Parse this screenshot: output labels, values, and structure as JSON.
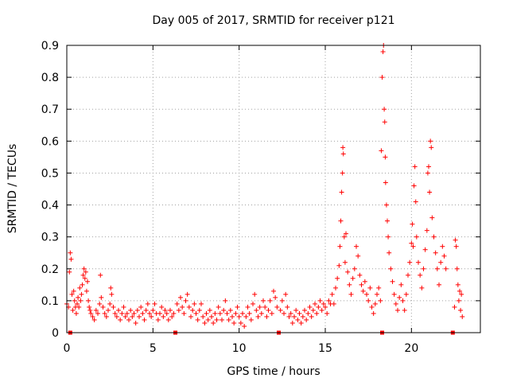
{
  "chart_data": {
    "type": "scatter",
    "title": "Day 005 of 2017, SRMTID for receiver p121",
    "xlabel": "GPS time / hours",
    "ylabel": "SRMTID / TECUs",
    "xlim": [
      0,
      24
    ],
    "ylim": [
      0,
      0.9
    ],
    "xticks": [
      0,
      5,
      10,
      15,
      20
    ],
    "xtick_labels": [
      "0",
      "5",
      "10",
      "15",
      "20"
    ],
    "yticks": [
      0,
      0.1,
      0.2,
      0.3,
      0.4,
      0.5,
      0.6,
      0.7,
      0.8,
      0.9
    ],
    "ytick_labels": [
      "0",
      "0.1",
      "0.2",
      "0.3",
      "0.4",
      "0.5",
      "0.6",
      "0.7",
      "0.8",
      "0.9"
    ],
    "grid": true,
    "marker": "+",
    "color": "#ff0000",
    "gap_markers_x": [
      0.2,
      6.3,
      12.3,
      18.3,
      22.4
    ],
    "series": [
      {
        "name": "SRMTID",
        "points": [
          [
            0.0,
            0.09
          ],
          [
            0.1,
            0.08
          ],
          [
            0.15,
            0.19
          ],
          [
            0.2,
            0.25
          ],
          [
            0.25,
            0.23
          ],
          [
            0.3,
            0.12
          ],
          [
            0.35,
            0.07
          ],
          [
            0.4,
            0.13
          ],
          [
            0.45,
            0.1
          ],
          [
            0.5,
            0.08
          ],
          [
            0.55,
            0.06
          ],
          [
            0.6,
            0.09
          ],
          [
            0.65,
            0.11
          ],
          [
            0.7,
            0.08
          ],
          [
            0.75,
            0.14
          ],
          [
            0.8,
            0.1
          ],
          [
            0.85,
            0.12
          ],
          [
            0.9,
            0.15
          ],
          [
            0.95,
            0.18
          ],
          [
            1.0,
            0.2
          ],
          [
            1.05,
            0.17
          ],
          [
            1.1,
            0.19
          ],
          [
            1.15,
            0.13
          ],
          [
            1.2,
            0.16
          ],
          [
            1.25,
            0.1
          ],
          [
            1.3,
            0.08
          ],
          [
            1.35,
            0.07
          ],
          [
            1.4,
            0.06
          ],
          [
            1.5,
            0.05
          ],
          [
            1.6,
            0.04
          ],
          [
            1.7,
            0.07
          ],
          [
            1.8,
            0.06
          ],
          [
            1.9,
            0.09
          ],
          [
            1.95,
            0.18
          ],
          [
            2.0,
            0.11
          ],
          [
            2.1,
            0.08
          ],
          [
            2.2,
            0.06
          ],
          [
            2.3,
            0.05
          ],
          [
            2.4,
            0.07
          ],
          [
            2.5,
            0.09
          ],
          [
            2.55,
            0.14
          ],
          [
            2.6,
            0.12
          ],
          [
            2.7,
            0.08
          ],
          [
            2.8,
            0.06
          ],
          [
            2.9,
            0.05
          ],
          [
            3.0,
            0.07
          ],
          [
            3.1,
            0.04
          ],
          [
            3.2,
            0.06
          ],
          [
            3.3,
            0.08
          ],
          [
            3.4,
            0.05
          ],
          [
            3.5,
            0.06
          ],
          [
            3.6,
            0.04
          ],
          [
            3.7,
            0.07
          ],
          [
            3.8,
            0.05
          ],
          [
            3.9,
            0.06
          ],
          [
            4.0,
            0.03
          ],
          [
            4.1,
            0.07
          ],
          [
            4.2,
            0.05
          ],
          [
            4.3,
            0.08
          ],
          [
            4.4,
            0.06
          ],
          [
            4.5,
            0.04
          ],
          [
            4.6,
            0.07
          ],
          [
            4.7,
            0.09
          ],
          [
            4.8,
            0.06
          ],
          [
            4.9,
            0.05
          ],
          [
            5.0,
            0.07
          ],
          [
            5.1,
            0.09
          ],
          [
            5.2,
            0.06
          ],
          [
            5.3,
            0.04
          ],
          [
            5.4,
            0.06
          ],
          [
            5.5,
            0.08
          ],
          [
            5.6,
            0.05
          ],
          [
            5.7,
            0.07
          ],
          [
            5.8,
            0.06
          ],
          [
            5.9,
            0.04
          ],
          [
            6.0,
            0.07
          ],
          [
            6.1,
            0.05
          ],
          [
            6.2,
            0.06
          ],
          [
            6.4,
            0.09
          ],
          [
            6.5,
            0.07
          ],
          [
            6.6,
            0.11
          ],
          [
            6.7,
            0.08
          ],
          [
            6.8,
            0.06
          ],
          [
            6.9,
            0.1
          ],
          [
            7.0,
            0.12
          ],
          [
            7.1,
            0.08
          ],
          [
            7.2,
            0.05
          ],
          [
            7.3,
            0.07
          ],
          [
            7.4,
            0.09
          ],
          [
            7.5,
            0.06
          ],
          [
            7.6,
            0.04
          ],
          [
            7.7,
            0.07
          ],
          [
            7.8,
            0.09
          ],
          [
            7.9,
            0.05
          ],
          [
            8.0,
            0.03
          ],
          [
            8.1,
            0.06
          ],
          [
            8.2,
            0.04
          ],
          [
            8.3,
            0.07
          ],
          [
            8.4,
            0.05
          ],
          [
            8.5,
            0.03
          ],
          [
            8.6,
            0.06
          ],
          [
            8.7,
            0.04
          ],
          [
            8.8,
            0.08
          ],
          [
            8.9,
            0.06
          ],
          [
            9.0,
            0.04
          ],
          [
            9.1,
            0.07
          ],
          [
            9.2,
            0.1
          ],
          [
            9.3,
            0.06
          ],
          [
            9.4,
            0.04
          ],
          [
            9.5,
            0.07
          ],
          [
            9.6,
            0.05
          ],
          [
            9.7,
            0.03
          ],
          [
            9.8,
            0.06
          ],
          [
            9.9,
            0.08
          ],
          [
            10.0,
            0.05
          ],
          [
            10.1,
            0.03
          ],
          [
            10.2,
            0.06
          ],
          [
            10.3,
            0.02
          ],
          [
            10.4,
            0.05
          ],
          [
            10.5,
            0.08
          ],
          [
            10.6,
            0.06
          ],
          [
            10.7,
            0.04
          ],
          [
            10.8,
            0.09
          ],
          [
            10.9,
            0.12
          ],
          [
            11.0,
            0.07
          ],
          [
            11.1,
            0.05
          ],
          [
            11.2,
            0.08
          ],
          [
            11.3,
            0.06
          ],
          [
            11.4,
            0.1
          ],
          [
            11.5,
            0.08
          ],
          [
            11.6,
            0.05
          ],
          [
            11.7,
            0.07
          ],
          [
            11.8,
            0.1
          ],
          [
            11.9,
            0.06
          ],
          [
            12.0,
            0.13
          ],
          [
            12.1,
            0.11
          ],
          [
            12.2,
            0.08
          ],
          [
            12.4,
            0.07
          ],
          [
            12.5,
            0.1
          ],
          [
            12.6,
            0.06
          ],
          [
            12.7,
            0.12
          ],
          [
            12.8,
            0.08
          ],
          [
            12.9,
            0.05
          ],
          [
            13.0,
            0.06
          ],
          [
            13.1,
            0.03
          ],
          [
            13.2,
            0.05
          ],
          [
            13.3,
            0.07
          ],
          [
            13.4,
            0.04
          ],
          [
            13.5,
            0.06
          ],
          [
            13.6,
            0.03
          ],
          [
            13.7,
            0.05
          ],
          [
            13.8,
            0.07
          ],
          [
            13.9,
            0.04
          ],
          [
            14.0,
            0.06
          ],
          [
            14.1,
            0.08
          ],
          [
            14.2,
            0.05
          ],
          [
            14.3,
            0.07
          ],
          [
            14.4,
            0.09
          ],
          [
            14.5,
            0.06
          ],
          [
            14.6,
            0.08
          ],
          [
            14.7,
            0.1
          ],
          [
            14.8,
            0.07
          ],
          [
            14.9,
            0.09
          ],
          [
            15.0,
            0.08
          ],
          [
            15.1,
            0.06
          ],
          [
            15.2,
            0.1
          ],
          [
            15.3,
            0.09
          ],
          [
            15.4,
            0.12
          ],
          [
            15.5,
            0.09
          ],
          [
            15.6,
            0.14
          ],
          [
            15.7,
            0.17
          ],
          [
            15.8,
            0.21
          ],
          [
            15.85,
            0.27
          ],
          [
            15.9,
            0.35
          ],
          [
            15.95,
            0.44
          ],
          [
            16.0,
            0.5
          ],
          [
            16.02,
            0.58
          ],
          [
            16.05,
            0.56
          ],
          [
            16.1,
            0.3
          ],
          [
            16.15,
            0.22
          ],
          [
            16.2,
            0.31
          ],
          [
            16.3,
            0.19
          ],
          [
            16.4,
            0.15
          ],
          [
            16.5,
            0.12
          ],
          [
            16.6,
            0.17
          ],
          [
            16.7,
            0.2
          ],
          [
            16.8,
            0.27
          ],
          [
            16.9,
            0.24
          ],
          [
            17.0,
            0.18
          ],
          [
            17.1,
            0.15
          ],
          [
            17.2,
            0.13
          ],
          [
            17.3,
            0.16
          ],
          [
            17.4,
            0.12
          ],
          [
            17.5,
            0.1
          ],
          [
            17.6,
            0.14
          ],
          [
            17.7,
            0.08
          ],
          [
            17.8,
            0.06
          ],
          [
            17.9,
            0.09
          ],
          [
            18.0,
            0.12
          ],
          [
            18.1,
            0.14
          ],
          [
            18.2,
            0.1
          ],
          [
            18.25,
            0.57
          ],
          [
            18.3,
            0.8
          ],
          [
            18.35,
            0.88
          ],
          [
            18.38,
            0.9
          ],
          [
            18.42,
            0.7
          ],
          [
            18.45,
            0.66
          ],
          [
            18.48,
            0.55
          ],
          [
            18.5,
            0.47
          ],
          [
            18.55,
            0.4
          ],
          [
            18.6,
            0.35
          ],
          [
            18.65,
            0.3
          ],
          [
            18.7,
            0.25
          ],
          [
            18.8,
            0.2
          ],
          [
            18.9,
            0.16
          ],
          [
            19.0,
            0.12
          ],
          [
            19.1,
            0.09
          ],
          [
            19.2,
            0.07
          ],
          [
            19.3,
            0.11
          ],
          [
            19.4,
            0.15
          ],
          [
            19.5,
            0.1
          ],
          [
            19.6,
            0.07
          ],
          [
            19.7,
            0.12
          ],
          [
            19.8,
            0.18
          ],
          [
            19.9,
            0.22
          ],
          [
            20.0,
            0.28
          ],
          [
            20.05,
            0.34
          ],
          [
            20.1,
            0.27
          ],
          [
            20.15,
            0.46
          ],
          [
            20.2,
            0.52
          ],
          [
            20.25,
            0.41
          ],
          [
            20.3,
            0.3
          ],
          [
            20.4,
            0.22
          ],
          [
            20.5,
            0.18
          ],
          [
            20.6,
            0.14
          ],
          [
            20.7,
            0.2
          ],
          [
            20.8,
            0.26
          ],
          [
            20.9,
            0.32
          ],
          [
            20.95,
            0.5
          ],
          [
            21.0,
            0.52
          ],
          [
            21.05,
            0.44
          ],
          [
            21.1,
            0.6
          ],
          [
            21.15,
            0.58
          ],
          [
            21.2,
            0.36
          ],
          [
            21.3,
            0.3
          ],
          [
            21.4,
            0.25
          ],
          [
            21.5,
            0.2
          ],
          [
            21.6,
            0.15
          ],
          [
            21.7,
            0.22
          ],
          [
            21.8,
            0.27
          ],
          [
            21.9,
            0.24
          ],
          [
            22.0,
            0.2
          ],
          [
            22.5,
            0.08
          ],
          [
            22.55,
            0.29
          ],
          [
            22.6,
            0.27
          ],
          [
            22.65,
            0.2
          ],
          [
            22.7,
            0.15
          ],
          [
            22.75,
            0.1
          ],
          [
            22.8,
            0.13
          ],
          [
            22.85,
            0.07
          ],
          [
            22.9,
            0.12
          ],
          [
            22.95,
            0.05
          ]
        ]
      }
    ]
  }
}
